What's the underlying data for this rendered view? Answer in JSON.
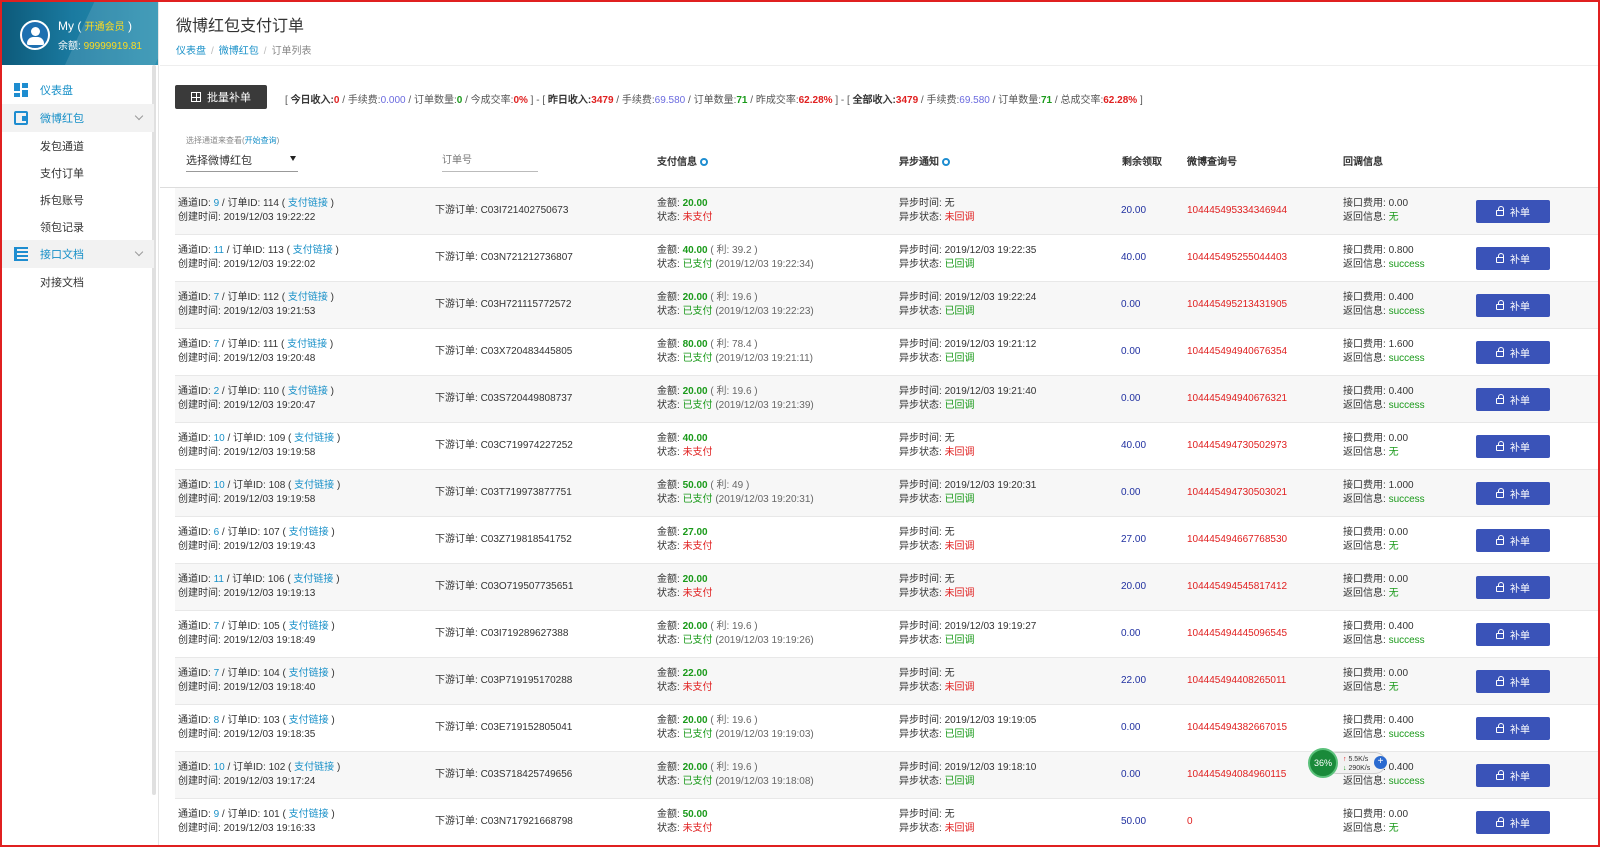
{
  "sidebar": {
    "user_name": "My (",
    "vip": "开通会员",
    "user_name_end": ")",
    "balance_label": "余额:",
    "balance": "99999919.81",
    "menu": [
      {
        "label": "仪表盘"
      },
      {
        "label": "微博红包",
        "children": [
          "发包通道",
          "支付订单",
          "拆包账号",
          "领包记录"
        ]
      },
      {
        "label": "接口文档",
        "children": [
          "对接文档"
        ]
      }
    ]
  },
  "header": {
    "title": "微博红包支付订单",
    "breadcrumb": [
      "仪表盘",
      "微博红包",
      "订单列表"
    ]
  },
  "toolbar": {
    "batch_label": "批量补单",
    "stats": {
      "open": "[",
      "today_label": "今日收入:",
      "today_income": "0",
      "fee_label": "手续费:",
      "today_fee": "0.000",
      "count_label": "订单数量:",
      "today_count": "0",
      "today_rate_label": "今成交率:",
      "today_rate": "0%",
      "close": "]",
      "dash": "-",
      "yest_label": "昨日收入:",
      "yest_income": "3479",
      "yest_fee": "69.580",
      "yest_count": "71",
      "yest_rate_label": "昨成交率:",
      "yest_rate": "62.28%",
      "all_label": "全部收入:",
      "all_income": "3479",
      "all_fee": "69.580",
      "all_count": "71",
      "all_rate_label": "总成交率:",
      "all_rate": "62.28%"
    }
  },
  "filters": {
    "hint": "选择通道来查看(",
    "hint_link": "开始查询",
    "hint_end": ")",
    "channel_value": "选择微博红包",
    "order_placeholder": "订单号"
  },
  "columns": {
    "pay": "支付信息",
    "notify": "异步通知",
    "remain": "剩余领取",
    "weibo": "微博查询号",
    "callback": "回调信息"
  },
  "labels": {
    "channel": "通道ID:",
    "order": "/ 订单ID:",
    "pay_link": "支付链接",
    "created": "创建时间:",
    "downstream": "下游订单:",
    "amount": "金额:",
    "status": "状态:",
    "notify_time": "异步时间:",
    "notify_status": "异步状态:",
    "api_fee": "接口费用:",
    "return_info": "返回信息:",
    "fix": "补单"
  },
  "orders": [
    {
      "ch": "9",
      "id": "114",
      "created": "2019/12/03 19:22:22",
      "down": "C03I721402750673",
      "amount": "20.00",
      "profit": "",
      "paid": false,
      "status": "未支付",
      "paid_time": "",
      "ntime": "无",
      "nstatus": "未回调",
      "remain": "20.00",
      "weibo": "104445495334346944",
      "fee": "0.00",
      "ret": "无"
    },
    {
      "ch": "11",
      "id": "113",
      "created": "2019/12/03 19:22:02",
      "down": "C03N721212736807",
      "amount": "40.00",
      "profit": "( 利: 39.2 )",
      "paid": true,
      "status": "已支付",
      "paid_time": "(2019/12/03 19:22:34)",
      "ntime": "2019/12/03 19:22:35",
      "nstatus": "已回调",
      "remain": "40.00",
      "weibo": "104445495255044403",
      "fee": "0.800",
      "ret": "success"
    },
    {
      "ch": "7",
      "id": "112",
      "created": "2019/12/03 19:21:53",
      "down": "C03H721115772572",
      "amount": "20.00",
      "profit": "( 利: 19.6 )",
      "paid": true,
      "status": "已支付",
      "paid_time": "(2019/12/03 19:22:23)",
      "ntime": "2019/12/03 19:22:24",
      "nstatus": "已回调",
      "remain": "0.00",
      "weibo": "104445495213431905",
      "fee": "0.400",
      "ret": "success"
    },
    {
      "ch": "7",
      "id": "111",
      "created": "2019/12/03 19:20:48",
      "down": "C03X720483445805",
      "amount": "80.00",
      "profit": "( 利: 78.4 )",
      "paid": true,
      "status": "已支付",
      "paid_time": "(2019/12/03 19:21:11)",
      "ntime": "2019/12/03 19:21:12",
      "nstatus": "已回调",
      "remain": "0.00",
      "weibo": "104445494940676354",
      "fee": "1.600",
      "ret": "success"
    },
    {
      "ch": "2",
      "id": "110",
      "created": "2019/12/03 19:20:47",
      "down": "C03S720449808737",
      "amount": "20.00",
      "profit": "( 利: 19.6 )",
      "paid": true,
      "status": "已支付",
      "paid_time": "(2019/12/03 19:21:39)",
      "ntime": "2019/12/03 19:21:40",
      "nstatus": "已回调",
      "remain": "0.00",
      "weibo": "104445494940676321",
      "fee": "0.400",
      "ret": "success"
    },
    {
      "ch": "10",
      "id": "109",
      "created": "2019/12/03 19:19:58",
      "down": "C03C719974227252",
      "amount": "40.00",
      "profit": "",
      "paid": false,
      "status": "未支付",
      "paid_time": "",
      "ntime": "无",
      "nstatus": "未回调",
      "remain": "40.00",
      "weibo": "104445494730502973",
      "fee": "0.00",
      "ret": "无"
    },
    {
      "ch": "10",
      "id": "108",
      "created": "2019/12/03 19:19:58",
      "down": "C03T719973877751",
      "amount": "50.00",
      "profit": "( 利: 49 )",
      "paid": true,
      "status": "已支付",
      "paid_time": "(2019/12/03 19:20:31)",
      "ntime": "2019/12/03 19:20:31",
      "nstatus": "已回调",
      "remain": "0.00",
      "weibo": "104445494730503021",
      "fee": "1.000",
      "ret": "success"
    },
    {
      "ch": "6",
      "id": "107",
      "created": "2019/12/03 19:19:43",
      "down": "C03Z719818541752",
      "amount": "27.00",
      "profit": "",
      "paid": false,
      "status": "未支付",
      "paid_time": "",
      "ntime": "无",
      "nstatus": "未回调",
      "remain": "27.00",
      "weibo": "104445494667768530",
      "fee": "0.00",
      "ret": "无"
    },
    {
      "ch": "11",
      "id": "106",
      "created": "2019/12/03 19:19:13",
      "down": "C03O719507735651",
      "amount": "20.00",
      "profit": "",
      "paid": false,
      "status": "未支付",
      "paid_time": "",
      "ntime": "无",
      "nstatus": "未回调",
      "remain": "20.00",
      "weibo": "104445494545817412",
      "fee": "0.00",
      "ret": "无"
    },
    {
      "ch": "7",
      "id": "105",
      "created": "2019/12/03 19:18:49",
      "down": "C03I719289627388",
      "amount": "20.00",
      "profit": "( 利: 19.6 )",
      "paid": true,
      "status": "已支付",
      "paid_time": "(2019/12/03 19:19:26)",
      "ntime": "2019/12/03 19:19:27",
      "nstatus": "已回调",
      "remain": "0.00",
      "weibo": "104445494445096545",
      "fee": "0.400",
      "ret": "success"
    },
    {
      "ch": "7",
      "id": "104",
      "created": "2019/12/03 19:18:40",
      "down": "C03P719195170288",
      "amount": "22.00",
      "profit": "",
      "paid": false,
      "status": "未支付",
      "paid_time": "",
      "ntime": "无",
      "nstatus": "未回调",
      "remain": "22.00",
      "weibo": "104445494408265011",
      "fee": "0.00",
      "ret": "无"
    },
    {
      "ch": "8",
      "id": "103",
      "created": "2019/12/03 19:18:35",
      "down": "C03E719152805041",
      "amount": "20.00",
      "profit": "( 利: 19.6 )",
      "paid": true,
      "status": "已支付",
      "paid_time": "(2019/12/03 19:19:03)",
      "ntime": "2019/12/03 19:19:05",
      "nstatus": "已回调",
      "remain": "0.00",
      "weibo": "104445494382667015",
      "fee": "0.400",
      "ret": "success"
    },
    {
      "ch": "10",
      "id": "102",
      "created": "2019/12/03 19:17:24",
      "down": "C03S718425749656",
      "amount": "20.00",
      "profit": "( 利: 19.6 )",
      "paid": true,
      "status": "已支付",
      "paid_time": "(2019/12/03 19:18:08)",
      "ntime": "2019/12/03 19:18:10",
      "nstatus": "已回调",
      "remain": "0.00",
      "weibo": "104445494084960115",
      "fee": "0.400",
      "ret": "success"
    },
    {
      "ch": "9",
      "id": "101",
      "created": "2019/12/03 19:16:33",
      "down": "C03N717921668798",
      "amount": "50.00",
      "profit": "",
      "paid": false,
      "status": "未支付",
      "paid_time": "",
      "ntime": "无",
      "nstatus": "未回调",
      "remain": "50.00",
      "weibo": "0",
      "fee": "0.00",
      "ret": "无"
    }
  ],
  "speed_widget": {
    "percent": "36%",
    "up": "5.5K/s",
    "down": "290K/s",
    "plus": "+"
  },
  "colors": {
    "accent": "#1890c8",
    "button": "#3a53b8",
    "paid": "#1a9a1a",
    "unpaid": "#e02020"
  }
}
